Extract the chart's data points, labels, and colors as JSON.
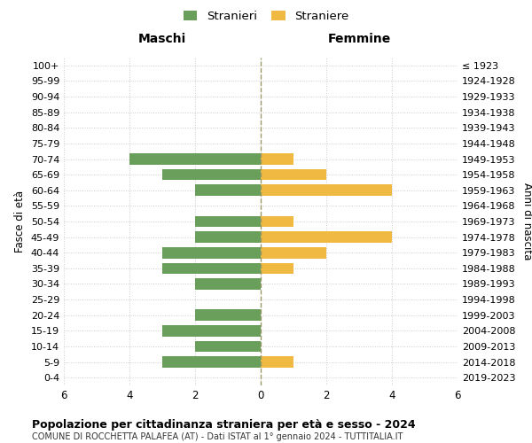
{
  "age_groups": [
    "0-4",
    "5-9",
    "10-14",
    "15-19",
    "20-24",
    "25-29",
    "30-34",
    "35-39",
    "40-44",
    "45-49",
    "50-54",
    "55-59",
    "60-64",
    "65-69",
    "70-74",
    "75-79",
    "80-84",
    "85-89",
    "90-94",
    "95-99",
    "100+"
  ],
  "birth_years": [
    "2019-2023",
    "2014-2018",
    "2009-2013",
    "2004-2008",
    "1999-2003",
    "1994-1998",
    "1989-1993",
    "1984-1988",
    "1979-1983",
    "1974-1978",
    "1969-1973",
    "1964-1968",
    "1959-1963",
    "1954-1958",
    "1949-1953",
    "1944-1948",
    "1939-1943",
    "1934-1938",
    "1929-1933",
    "1924-1928",
    "≤ 1923"
  ],
  "males": [
    0,
    3,
    2,
    3,
    2,
    0,
    2,
    3,
    3,
    2,
    2,
    0,
    2,
    3,
    4,
    0,
    0,
    0,
    0,
    0,
    0
  ],
  "females": [
    0,
    1,
    0,
    0,
    0,
    0,
    0,
    1,
    2,
    4,
    1,
    0,
    4,
    2,
    1,
    0,
    0,
    0,
    0,
    0,
    0
  ],
  "male_color": "#6a9e5b",
  "female_color": "#f0b942",
  "male_label": "Stranieri",
  "female_label": "Straniere",
  "title": "Popolazione per cittadinanza straniera per età e sesso - 2024",
  "subtitle": "COMUNE DI ROCCHETTA PALAFEA (AT) - Dati ISTAT al 1° gennaio 2024 - TUTTITALIA.IT",
  "header_left": "Maschi",
  "header_right": "Femmine",
  "ylabel_left": "Fasce di età",
  "ylabel_right": "Anni di nascita",
  "xlim": 6,
  "xticks": [
    6,
    4,
    2,
    0,
    2,
    4,
    6
  ],
  "background_color": "#ffffff",
  "grid_color": "#cccccc",
  "vline_color": "#999966"
}
